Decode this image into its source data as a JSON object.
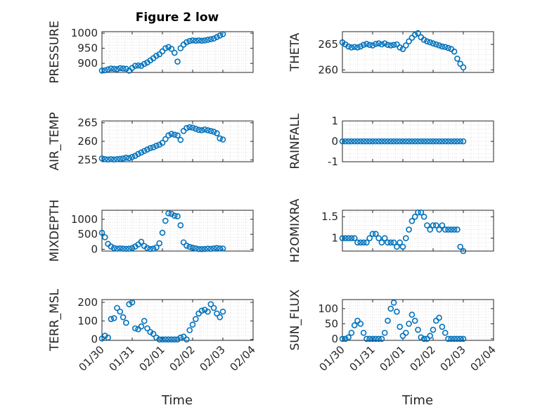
{
  "figure": {
    "title": "Figure 2 low",
    "xlabel": "Time"
  },
  "chart_data": [
    {
      "type": "scatter",
      "panel": "pressure",
      "title": "Figure 2 low",
      "ylabel": "PRESSURE",
      "ylim": [
        870,
        1005
      ],
      "yticks": [
        900,
        950,
        1000
      ],
      "ytick_labels": [
        "900",
        "950",
        "1000"
      ],
      "xlim": [
        0,
        5
      ],
      "xticks": [
        0,
        1,
        2,
        3,
        4,
        5
      ],
      "xtick_labels": [],
      "x": [
        0.0,
        0.1,
        0.2,
        0.3,
        0.4,
        0.5,
        0.6,
        0.7,
        0.8,
        0.9,
        1.0,
        1.1,
        1.2,
        1.3,
        1.4,
        1.5,
        1.6,
        1.7,
        1.8,
        1.9,
        2.0,
        2.1,
        2.2,
        2.3,
        2.4,
        2.5,
        2.6,
        2.7,
        2.8,
        2.9,
        3.0,
        3.1,
        3.2,
        3.3,
        3.4,
        3.5,
        3.6,
        3.7,
        3.8,
        3.9,
        4.0
      ],
      "y": [
        876,
        877,
        880,
        883,
        882,
        881,
        884,
        883,
        882,
        876,
        885,
        892,
        893,
        892,
        898,
        903,
        910,
        917,
        925,
        930,
        940,
        950,
        954,
        948,
        935,
        906,
        950,
        962,
        970,
        974,
        976,
        975,
        976,
        975,
        976,
        978,
        980,
        982,
        987,
        992,
        997
      ]
    },
    {
      "type": "scatter",
      "panel": "theta",
      "ylabel": "THETA",
      "ylim": [
        259.5,
        267.5
      ],
      "yticks": [
        260,
        265
      ],
      "ytick_labels": [
        "260",
        "265"
      ],
      "xlim": [
        0,
        5
      ],
      "xticks": [
        0,
        1,
        2,
        3,
        4,
        5
      ],
      "xtick_labels": [],
      "x": [
        0.0,
        0.1,
        0.2,
        0.3,
        0.4,
        0.5,
        0.6,
        0.7,
        0.8,
        0.9,
        1.0,
        1.1,
        1.2,
        1.3,
        1.4,
        1.5,
        1.6,
        1.7,
        1.8,
        1.9,
        2.0,
        2.1,
        2.2,
        2.3,
        2.4,
        2.5,
        2.6,
        2.7,
        2.8,
        2.9,
        3.0,
        3.1,
        3.2,
        3.3,
        3.4,
        3.5,
        3.6,
        3.7,
        3.8,
        3.9,
        4.0
      ],
      "y": [
        265.4,
        265.0,
        264.6,
        264.4,
        264.5,
        264.4,
        264.6,
        264.9,
        265.1,
        264.9,
        264.8,
        265.1,
        265.2,
        265.0,
        265.2,
        264.9,
        264.8,
        264.9,
        265.0,
        264.4,
        264.1,
        264.8,
        265.6,
        266.3,
        266.9,
        267.2,
        266.4,
        265.9,
        265.6,
        265.4,
        265.2,
        265.0,
        264.8,
        264.6,
        264.5,
        264.3,
        264.1,
        263.6,
        262.2,
        261.2,
        260.5
      ]
    },
    {
      "type": "scatter",
      "panel": "air_temp",
      "ylabel": "AIR_TEMP",
      "ylim": [
        254.5,
        265.5
      ],
      "yticks": [
        255,
        260,
        265
      ],
      "ytick_labels": [
        "255",
        "260",
        "265"
      ],
      "xlim": [
        0,
        5
      ],
      "xticks": [
        0,
        1,
        2,
        3,
        4,
        5
      ],
      "xtick_labels": [],
      "x": [
        0.0,
        0.1,
        0.2,
        0.3,
        0.4,
        0.5,
        0.6,
        0.7,
        0.8,
        0.9,
        1.0,
        1.1,
        1.2,
        1.3,
        1.4,
        1.5,
        1.6,
        1.7,
        1.8,
        1.9,
        2.0,
        2.1,
        2.2,
        2.3,
        2.4,
        2.5,
        2.6,
        2.7,
        2.8,
        2.9,
        3.0,
        3.1,
        3.2,
        3.3,
        3.4,
        3.5,
        3.6,
        3.7,
        3.8,
        3.9,
        4.0
      ],
      "y": [
        255.4,
        255.2,
        255.1,
        255.2,
        255.1,
        255.2,
        255.3,
        255.4,
        255.6,
        255.5,
        255.8,
        256.1,
        256.6,
        257.0,
        257.4,
        257.8,
        258.2,
        258.4,
        258.8,
        259.1,
        259.6,
        260.6,
        261.6,
        262.0,
        261.8,
        261.6,
        260.4,
        262.8,
        263.6,
        263.8,
        263.7,
        263.4,
        263.1,
        263.0,
        263.2,
        263.0,
        262.8,
        262.6,
        262.2,
        260.8,
        260.5
      ]
    },
    {
      "type": "scatter",
      "panel": "rainfall",
      "ylabel": "RAINFALL",
      "ylim": [
        -1,
        1
      ],
      "yticks": [
        -1,
        0,
        1
      ],
      "ytick_labels": [
        "-1",
        "0",
        "1"
      ],
      "xlim": [
        0,
        5
      ],
      "xticks": [
        0,
        1,
        2,
        3,
        4,
        5
      ],
      "xtick_labels": [],
      "x": [
        0.0,
        0.1,
        0.2,
        0.3,
        0.4,
        0.5,
        0.6,
        0.7,
        0.8,
        0.9,
        1.0,
        1.1,
        1.2,
        1.3,
        1.4,
        1.5,
        1.6,
        1.7,
        1.8,
        1.9,
        2.0,
        2.1,
        2.2,
        2.3,
        2.4,
        2.5,
        2.6,
        2.7,
        2.8,
        2.9,
        3.0,
        3.1,
        3.2,
        3.3,
        3.4,
        3.5,
        3.6,
        3.7,
        3.8,
        3.9,
        4.0
      ],
      "y": [
        0,
        0,
        0,
        0,
        0,
        0,
        0,
        0,
        0,
        0,
        0,
        0,
        0,
        0,
        0,
        0,
        0,
        0,
        0,
        0,
        0,
        0,
        0,
        0,
        0,
        0,
        0,
        0,
        0,
        0,
        0,
        0,
        0,
        0,
        0,
        0,
        0,
        0,
        0,
        0,
        0
      ]
    },
    {
      "type": "scatter",
      "panel": "mixdepth",
      "ylabel": "MIXDEPTH",
      "ylim": [
        -60,
        1300
      ],
      "yticks": [
        0,
        500,
        1000
      ],
      "ytick_labels": [
        "0",
        "500",
        "1000"
      ],
      "xlim": [
        0,
        5
      ],
      "xticks": [
        0,
        1,
        2,
        3,
        4,
        5
      ],
      "xtick_labels": [],
      "x": [
        0.0,
        0.1,
        0.2,
        0.3,
        0.4,
        0.5,
        0.6,
        0.7,
        0.8,
        0.9,
        1.0,
        1.1,
        1.2,
        1.3,
        1.4,
        1.5,
        1.6,
        1.7,
        1.8,
        1.9,
        2.0,
        2.1,
        2.2,
        2.3,
        2.4,
        2.5,
        2.6,
        2.7,
        2.8,
        2.9,
        3.0,
        3.1,
        3.2,
        3.3,
        3.4,
        3.5,
        3.6,
        3.7,
        3.8,
        3.9,
        4.0
      ],
      "y": [
        550,
        400,
        180,
        90,
        40,
        20,
        30,
        20,
        15,
        20,
        40,
        90,
        160,
        250,
        110,
        40,
        10,
        20,
        60,
        200,
        550,
        950,
        1200,
        1180,
        1120,
        1100,
        800,
        230,
        120,
        80,
        50,
        30,
        10,
        5,
        10,
        20,
        15,
        30,
        40,
        30,
        25
      ]
    },
    {
      "type": "scatter",
      "panel": "h2omixra",
      "ylabel": "H2OMIXRA",
      "ylim": [
        0.7,
        1.65
      ],
      "yticks": [
        1.0,
        1.5
      ],
      "ytick_labels": [
        "1",
        "1.5"
      ],
      "xlim": [
        0,
        5
      ],
      "xticks": [
        0,
        1,
        2,
        3,
        4,
        5
      ],
      "xtick_labels": [],
      "x": [
        0.0,
        0.1,
        0.2,
        0.3,
        0.4,
        0.5,
        0.6,
        0.7,
        0.8,
        0.9,
        1.0,
        1.1,
        1.2,
        1.3,
        1.4,
        1.5,
        1.6,
        1.7,
        1.8,
        1.9,
        2.0,
        2.1,
        2.2,
        2.3,
        2.4,
        2.5,
        2.6,
        2.7,
        2.8,
        2.9,
        3.0,
        3.1,
        3.2,
        3.3,
        3.4,
        3.5,
        3.6,
        3.7,
        3.8,
        3.9,
        4.0
      ],
      "y": [
        1.0,
        1.0,
        1.0,
        1.0,
        1.0,
        0.9,
        0.9,
        0.9,
        0.9,
        1.0,
        1.1,
        1.1,
        1.0,
        0.9,
        1.0,
        0.9,
        0.9,
        0.9,
        0.8,
        0.9,
        0.8,
        1.0,
        1.2,
        1.4,
        1.5,
        1.6,
        1.6,
        1.5,
        1.3,
        1.2,
        1.3,
        1.3,
        1.2,
        1.3,
        1.2,
        1.2,
        1.2,
        1.2,
        1.2,
        0.8,
        0.7
      ]
    },
    {
      "type": "scatter",
      "panel": "terr_msl",
      "ylabel": "TERR_MSL",
      "ylim": [
        -5,
        215
      ],
      "yticks": [
        0,
        100,
        200
      ],
      "ytick_labels": [
        "0",
        "100",
        "200"
      ],
      "xlim": [
        0,
        5
      ],
      "xticks": [
        0,
        1,
        2,
        3,
        4,
        5
      ],
      "xtick_labels": [
        "01/30",
        "01/31",
        "02/01",
        "02/02",
        "02/03",
        "02/04"
      ],
      "x": [
        0.0,
        0.1,
        0.2,
        0.3,
        0.4,
        0.5,
        0.6,
        0.7,
        0.8,
        0.9,
        1.0,
        1.1,
        1.2,
        1.3,
        1.4,
        1.5,
        1.6,
        1.7,
        1.8,
        1.9,
        2.0,
        2.1,
        2.2,
        2.3,
        2.4,
        2.5,
        2.6,
        2.7,
        2.8,
        2.9,
        3.0,
        3.1,
        3.2,
        3.3,
        3.4,
        3.5,
        3.6,
        3.7,
        3.8,
        3.9,
        4.0
      ],
      "y": [
        5,
        20,
        10,
        110,
        115,
        170,
        150,
        120,
        90,
        190,
        200,
        60,
        55,
        70,
        100,
        60,
        40,
        30,
        10,
        0,
        0,
        0,
        0,
        0,
        0,
        0,
        10,
        15,
        0,
        50,
        80,
        110,
        140,
        155,
        160,
        150,
        190,
        170,
        140,
        120,
        150
      ]
    },
    {
      "type": "scatter",
      "panel": "sun_flux",
      "ylabel": "SUN_FLUX",
      "ylim": [
        -5,
        130
      ],
      "yticks": [
        0,
        50,
        100
      ],
      "ytick_labels": [
        "0",
        "50",
        "100"
      ],
      "xlim": [
        0,
        5
      ],
      "xticks": [
        0,
        1,
        2,
        3,
        4,
        5
      ],
      "xtick_labels": [
        "01/30",
        "01/31",
        "02/01",
        "02/02",
        "02/03",
        "02/04"
      ],
      "x": [
        0.0,
        0.1,
        0.2,
        0.3,
        0.4,
        0.5,
        0.6,
        0.7,
        0.8,
        0.9,
        1.0,
        1.1,
        1.2,
        1.3,
        1.4,
        1.5,
        1.6,
        1.7,
        1.8,
        1.9,
        2.0,
        2.1,
        2.2,
        2.3,
        2.4,
        2.5,
        2.6,
        2.7,
        2.8,
        2.9,
        3.0,
        3.1,
        3.2,
        3.3,
        3.4,
        3.5,
        3.6,
        3.7,
        3.8,
        3.9,
        4.0
      ],
      "y": [
        0,
        0,
        5,
        20,
        45,
        60,
        50,
        20,
        0,
        0,
        0,
        0,
        0,
        0,
        20,
        60,
        100,
        120,
        90,
        40,
        10,
        20,
        50,
        80,
        60,
        30,
        5,
        0,
        0,
        10,
        30,
        60,
        70,
        40,
        20,
        0,
        0,
        0,
        0,
        0,
        0
      ]
    }
  ],
  "style": {
    "marker_color": "#0072bd",
    "grid_color": "#d9d9d9",
    "axis_color": "#262626"
  }
}
